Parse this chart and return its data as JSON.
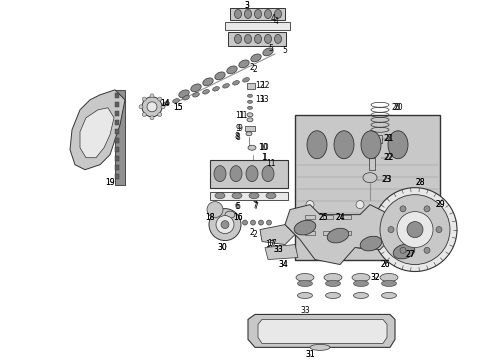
{
  "background_color": "#ffffff",
  "fig_width": 4.9,
  "fig_height": 3.6,
  "dpi": 100,
  "line_color": "#333333",
  "text_color": "#000000",
  "label_fontsize": 5.5,
  "gray_light": "#e8e8e8",
  "gray_mid": "#c8c8c8",
  "gray_dark": "#909090",
  "gray_darker": "#606060"
}
